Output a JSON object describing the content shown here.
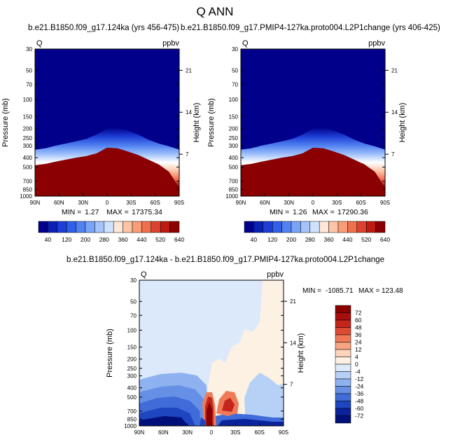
{
  "title": "Q ANN",
  "chart_data": [
    {
      "type": "heatmap",
      "title": "b.e21.B1850.f09_g17.124ka (yrs 456-475)",
      "variable": "Q",
      "units": "ppbv",
      "xlabel": "",
      "ylabel": "Pressure (mb)",
      "ylabel_right": "Height (km)",
      "x_ticks": [
        "90N",
        "60N",
        "30N",
        "0",
        "30S",
        "60S",
        "90S"
      ],
      "y_ticks": [
        "30",
        "50",
        "70",
        "100",
        "150",
        "200",
        "250",
        "300",
        "400",
        "500",
        "700",
        "850",
        "1000"
      ],
      "y_ticks_right": [
        "21",
        "14",
        "7"
      ],
      "ylim": [
        30,
        1000
      ],
      "stats": {
        "min_label": "MIN =",
        "min": "1.27",
        "max_label": "MAX =",
        "max": "17375.34"
      },
      "colorbar": {
        "orientation": "horizontal",
        "labels": [
          "40",
          "120",
          "200",
          "280",
          "360",
          "440",
          "520",
          "640"
        ]
      },
      "tropopause_pressure": [
        330,
        320,
        300,
        285,
        270,
        255,
        230,
        200,
        195,
        210,
        230,
        260,
        285,
        305,
        330
      ],
      "moist_pressure": [
        480,
        465,
        440,
        420,
        400,
        385,
        360,
        315,
        320,
        345,
        375,
        420,
        470,
        560,
        820
      ]
    },
    {
      "type": "heatmap",
      "title": "b.e21.B1850.f09_g17.PMIP4-127ka.proto004.L2P1change (yrs 406-425)",
      "variable": "Q",
      "units": "ppbv",
      "xlabel": "",
      "ylabel": "Pressure (mb)",
      "ylabel_right": "Height (km)",
      "x_ticks": [
        "90N",
        "60N",
        "30N",
        "0",
        "30S",
        "60S",
        "90S"
      ],
      "y_ticks": [
        "30",
        "50",
        "70",
        "100",
        "150",
        "200",
        "250",
        "300",
        "400",
        "500",
        "700",
        "850",
        "1000"
      ],
      "y_ticks_right": [
        "21",
        "14",
        "7"
      ],
      "ylim": [
        30,
        1000
      ],
      "stats": {
        "min_label": "MIN =",
        "min": "1.26",
        "max_label": "MAX =",
        "max": "17290.36"
      },
      "colorbar": {
        "orientation": "horizontal",
        "labels": [
          "40",
          "120",
          "200",
          "280",
          "360",
          "440",
          "520",
          "640"
        ]
      },
      "tropopause_pressure": [
        330,
        320,
        300,
        285,
        270,
        255,
        230,
        200,
        195,
        210,
        230,
        260,
        285,
        305,
        330
      ],
      "moist_pressure": [
        480,
        465,
        440,
        420,
        400,
        385,
        360,
        315,
        320,
        345,
        375,
        420,
        470,
        560,
        820
      ]
    },
    {
      "type": "heatmap",
      "title": "b.e21.B1850.f09_g17.124ka - b.e21.B1850.f09_g17.PMIP4-127ka.proto004.L2P1change",
      "variable": "Q",
      "units": "ppbv",
      "xlabel": "",
      "ylabel": "Pressure (mb)",
      "ylabel_right": "Height (km)",
      "x_ticks": [
        "90N",
        "60N",
        "30N",
        "0",
        "30S",
        "60S",
        "90S"
      ],
      "y_ticks": [
        "30",
        "50",
        "70",
        "100",
        "150",
        "200",
        "250",
        "300",
        "400",
        "500",
        "700",
        "850",
        "1000"
      ],
      "y_ticks_right": [
        "21",
        "14",
        "7"
      ],
      "ylim": [
        30,
        1000
      ],
      "stats": {
        "min_label": "MIN =",
        "min": "-1085.71",
        "max_label": "MAX =",
        "max": "123.48"
      },
      "colorbar": {
        "orientation": "vertical",
        "labels": [
          "72",
          "60",
          "48",
          "36",
          "24",
          "12",
          "4",
          "0",
          "-4",
          "-12",
          "-24",
          "-36",
          "-48",
          "-60",
          "-72"
        ]
      }
    }
  ],
  "colors": {
    "seq": [
      "#00008a",
      "#0b20b4",
      "#1e3ed6",
      "#3060e8",
      "#5282f2",
      "#7aa4f7",
      "#a4c4fb",
      "#cfe2fd",
      "#ffe7d8",
      "#fdc5a8",
      "#f99c78",
      "#f0704e",
      "#dc4230",
      "#bd1b12",
      "#8b0000"
    ],
    "diff": [
      "#8b0000",
      "#a80e0e",
      "#c4261c",
      "#de4b35",
      "#ef7a58",
      "#f8a482",
      "#fdd3bb",
      "#fdf1e3",
      "#dbe9fb",
      "#b7d1f6",
      "#8eb2f0",
      "#6690e6",
      "#3f6cd8",
      "#1d46c0",
      "#0a229c",
      "#000f7a"
    ]
  }
}
